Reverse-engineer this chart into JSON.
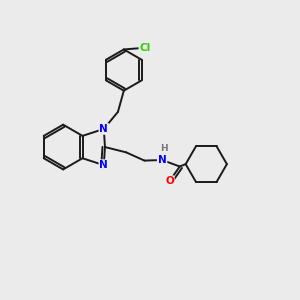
{
  "background_color": "#ebebeb",
  "bond_color": "#1a1a1a",
  "atom_colors": {
    "N": "#0000ff",
    "O": "#ff0000",
    "Cl": "#33cc00",
    "H": "#777777"
  },
  "figsize": [
    3.0,
    3.0
  ],
  "dpi": 100
}
